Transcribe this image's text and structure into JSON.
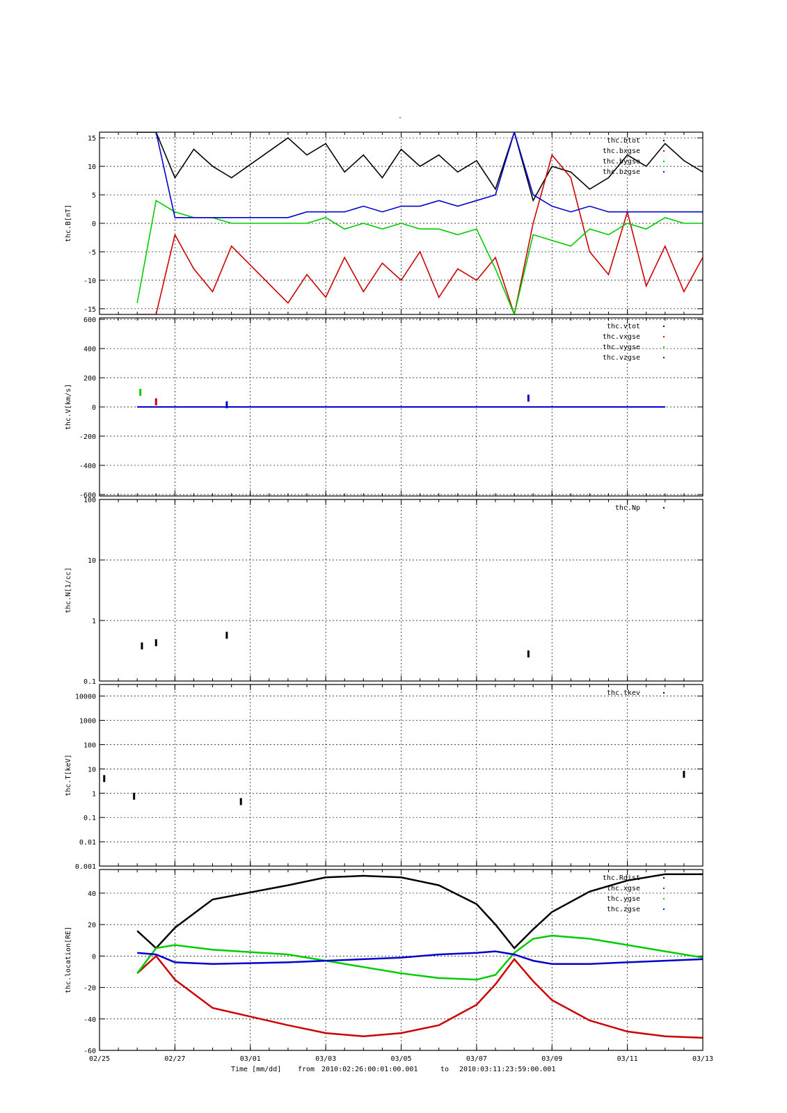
{
  "title": "-",
  "xlabel": {
    "prefix": "Time [mm/dd]",
    "from_label": "from",
    "from": "2010:02:26:00:01:00.001",
    "to_label": "to",
    "to": "2010:03:11:23:59:00.001"
  },
  "x_ticks": [
    "02/25",
    "02/27",
    "03/01",
    "03/03",
    "03/05",
    "03/07",
    "03/09",
    "03/11",
    "03/13"
  ],
  "colors": {
    "black": "#000000",
    "red": "#cc0000",
    "green": "#00cc00",
    "blue": "#0000cc"
  },
  "chart_data": [
    {
      "type": "scatter",
      "ylabel": "thc.B[nT]",
      "ylim": [
        -16,
        16
      ],
      "yscale": "linear",
      "yticks": [
        15,
        10,
        5,
        0,
        -5,
        -10,
        -15
      ],
      "xlim_days": [
        "02/25",
        "03/13"
      ],
      "legend_position": "top-right",
      "grid": true,
      "series": [
        {
          "name": "thc.btot",
          "color": "black",
          "x": [
            "02/26 00:00",
            "02/26 12:00",
            "02/27 00:00",
            "02/27 12:00",
            "02/28 00:00",
            "02/28 12:00",
            "03/01 00:00",
            "03/01 12:00",
            "03/02 00:00",
            "03/02 12:00",
            "03/03 00:00",
            "03/03 12:00",
            "03/04 00:00",
            "03/04 12:00",
            "03/05 00:00",
            "03/05 12:00",
            "03/06 00:00",
            "03/06 12:00",
            "03/07 00:00",
            "03/07 12:00",
            "03/08 00:00",
            "03/08 12:00",
            "03/09 00:00",
            "03/09 12:00",
            "03/10 00:00",
            "03/10 12:00",
            "03/11 00:00",
            "03/11 12:00",
            "03/12 00:00"
          ],
          "y": [
            16,
            16,
            8,
            13,
            10,
            8,
            15,
            12,
            14,
            9,
            12,
            8,
            13,
            10,
            12,
            9,
            11,
            6,
            16,
            4,
            10,
            9,
            6,
            8,
            12,
            10,
            14,
            11,
            9
          ]
        },
        {
          "name": "thc.bxgse",
          "color": "red",
          "x": [
            "02/26 00:00",
            "02/26 12:00",
            "02/27 00:00",
            "02/27 12:00",
            "02/28 00:00",
            "02/28 12:00",
            "03/01 00:00",
            "03/01 12:00",
            "03/02 00:00",
            "03/02 12:00",
            "03/03 00:00",
            "03/03 12:00",
            "03/04 00:00",
            "03/04 12:00",
            "03/05 00:00",
            "03/05 12:00",
            "03/06 00:00",
            "03/06 12:00",
            "03/07 00:00",
            "03/07 12:00",
            "03/08 00:00",
            "03/08 12:00",
            "03/09 00:00",
            "03/09 12:00",
            "03/10 00:00",
            "03/10 12:00",
            "03/11 00:00",
            "03/11 12:00",
            "03/12 00:00"
          ],
          "y": [
            -16,
            -16,
            -2,
            -8,
            -12,
            -4,
            -14,
            -9,
            -13,
            -6,
            -12,
            -7,
            -10,
            -5,
            -13,
            -8,
            -10,
            -6,
            -16,
            0,
            12,
            8,
            -5,
            -9,
            2,
            -11,
            -4,
            -12,
            -6
          ]
        },
        {
          "name": "thc.bygse",
          "color": "green",
          "x": [
            "02/26 00:00",
            "02/26 12:00",
            "02/27 00:00",
            "02/27 12:00",
            "02/28 00:00",
            "02/28 12:00",
            "03/01 00:00",
            "03/01 12:00",
            "03/02 00:00",
            "03/02 12:00",
            "03/03 00:00",
            "03/03 12:00",
            "03/04 00:00",
            "03/04 12:00",
            "03/05 00:00",
            "03/05 12:00",
            "03/06 00:00",
            "03/06 12:00",
            "03/07 00:00",
            "03/07 12:00",
            "03/08 00:00",
            "03/08 12:00",
            "03/09 00:00",
            "03/09 12:00",
            "03/10 00:00",
            "03/10 12:00",
            "03/11 00:00",
            "03/11 12:00",
            "03/12 00:00"
          ],
          "y": [
            -14,
            4,
            2,
            1,
            1,
            0,
            0,
            0,
            1,
            -1,
            0,
            -1,
            0,
            -1,
            -1,
            -2,
            -1,
            -8,
            -16,
            -2,
            -3,
            -4,
            -1,
            -2,
            0,
            -1,
            1,
            0,
            0
          ]
        },
        {
          "name": "thc.bzgse",
          "color": "blue",
          "x": [
            "02/26 00:00",
            "02/26 12:00",
            "02/27 00:00",
            "02/27 12:00",
            "02/28 00:00",
            "02/28 12:00",
            "03/01 00:00",
            "03/01 12:00",
            "03/02 00:00",
            "03/02 12:00",
            "03/03 00:00",
            "03/03 12:00",
            "03/04 00:00",
            "03/04 12:00",
            "03/05 00:00",
            "03/05 12:00",
            "03/06 00:00",
            "03/06 12:00",
            "03/07 00:00",
            "03/07 12:00",
            "03/08 00:00",
            "03/08 12:00",
            "03/09 00:00",
            "03/09 12:00",
            "03/10 00:00",
            "03/10 12:00",
            "03/11 00:00",
            "03/11 12:00",
            "03/12 00:00"
          ],
          "y": [
            16,
            16,
            1,
            1,
            1,
            1,
            1,
            2,
            2,
            2,
            3,
            2,
            3,
            3,
            4,
            3,
            4,
            5,
            16,
            5,
            3,
            2,
            3,
            2,
            2,
            2,
            2,
            2,
            2
          ]
        }
      ]
    },
    {
      "type": "scatter",
      "ylabel": "thc.V[km/s]",
      "ylim": [
        -610,
        610
      ],
      "yscale": "linear",
      "yticks": [
        600,
        400,
        200,
        0,
        -200,
        -400,
        -600
      ],
      "legend_position": "top-right",
      "grid": true,
      "series": [
        {
          "name": "thc.vtot",
          "color": "black",
          "x": [
            "02/26 00:00",
            "03/12 00:00"
          ],
          "y": [
            0,
            0
          ]
        },
        {
          "name": "thc.vxgse",
          "color": "red",
          "x": [
            "02/26 00:00",
            "02/26 12:00",
            "03/12 00:00"
          ],
          "y": [
            0,
            35,
            0
          ]
        },
        {
          "name": "thc.vygse",
          "color": "green",
          "x": [
            "02/26 00:00",
            "02/26 02:00",
            "03/12 00:00"
          ],
          "y": [
            0,
            100,
            0
          ]
        },
        {
          "name": "thc.vzgse",
          "color": "blue",
          "x": [
            "02/26 00:00",
            "02/28 09:00",
            "03/07 09:00",
            "03/12 00:00"
          ],
          "y": [
            0,
            15,
            60,
            0
          ]
        }
      ]
    },
    {
      "type": "scatter",
      "ylabel": "thc.N[1/cc]",
      "ylim": [
        0.1,
        100
      ],
      "yscale": "log",
      "yticks": [
        "100",
        "10",
        "1",
        "0.1"
      ],
      "legend_position": "top-right",
      "grid": true,
      "series": [
        {
          "name": "thc.Np",
          "color": "black",
          "x": [
            "02/26 03:00",
            "02/26 12:00",
            "02/28 09:00",
            "03/07 09:00"
          ],
          "y": [
            0.38,
            0.43,
            0.57,
            0.28
          ]
        }
      ]
    },
    {
      "type": "scatter",
      "ylabel": "thc.T[keV]",
      "ylim": [
        0.001,
        30000
      ],
      "yscale": "log",
      "yticks": [
        "10000",
        "1000",
        "100",
        "10",
        "1",
        "0.1",
        "0.01",
        "0.001"
      ],
      "legend_position": "top-right",
      "grid": true,
      "series": [
        {
          "name": "thc.tkev",
          "color": "black",
          "x": [
            "02/25 03:00",
            "02/25 22:00",
            "02/28 18:00",
            "03/11 12:00"
          ],
          "y": [
            4,
            0.75,
            0.45,
            6
          ]
        }
      ]
    },
    {
      "type": "line",
      "ylabel": "thc.location[RE]",
      "ylim": [
        -60,
        55
      ],
      "yscale": "linear",
      "yticks": [
        40,
        20,
        0,
        -20,
        -40,
        -60
      ],
      "legend_position": "top-right",
      "grid": true,
      "series": [
        {
          "name": "thc.Rdist",
          "color": "black",
          "x": [
            "02/26 00:00",
            "02/26 12:00",
            "02/27 00:00",
            "02/28 00:00",
            "03/01 00:00",
            "03/02 00:00",
            "03/03 00:00",
            "03/04 00:00",
            "03/05 00:00",
            "03/06 00:00",
            "03/06 12:00",
            "03/07 00:00",
            "03/07 12:00",
            "03/08 00:00",
            "03/09 00:00",
            "03/10 00:00",
            "03/11 00:00",
            "03/12 00:00"
          ],
          "y": [
            16,
            5,
            18,
            36,
            45,
            50,
            51,
            50,
            45,
            33,
            20,
            5,
            17,
            28,
            41,
            48,
            52,
            52
          ]
        },
        {
          "name": "thc.xgse",
          "color": "red",
          "x": [
            "02/26 00:00",
            "02/26 12:00",
            "02/27 00:00",
            "02/28 00:00",
            "03/01 00:00",
            "03/02 00:00",
            "03/03 00:00",
            "03/04 00:00",
            "03/05 00:00",
            "03/06 00:00",
            "03/06 12:00",
            "03/07 00:00",
            "03/07 12:00",
            "03/08 00:00",
            "03/09 00:00",
            "03/10 00:00",
            "03/11 00:00",
            "03/12 00:00"
          ],
          "y": [
            -11,
            0,
            -15,
            -33,
            -44,
            -49,
            -51,
            -49,
            -44,
            -31,
            -18,
            -2,
            -16,
            -28,
            -41,
            -48,
            -51,
            -52
          ]
        },
        {
          "name": "thc.ygse",
          "color": "green",
          "x": [
            "02/26 00:00",
            "02/26 12:00",
            "02/27 00:00",
            "02/28 00:00",
            "03/01 00:00",
            "03/02 00:00",
            "03/03 00:00",
            "03/04 00:00",
            "03/05 00:00",
            "03/06 00:00",
            "03/06 12:00",
            "03/07 00:00",
            "03/07 12:00",
            "03/08 00:00",
            "03/09 00:00",
            "03/10 00:00",
            "03/11 00:00",
            "03/12 00:00"
          ],
          "y": [
            -11,
            5,
            7,
            4,
            1,
            -3,
            -7,
            -11,
            -14,
            -15,
            -12,
            2,
            11,
            13,
            11,
            7,
            3,
            -1
          ]
        },
        {
          "name": "thc.zgse",
          "color": "blue",
          "x": [
            "02/26 00:00",
            "02/26 12:00",
            "02/27 00:00",
            "02/28 00:00",
            "03/01 00:00",
            "03/02 00:00",
            "03/03 00:00",
            "03/04 00:00",
            "03/05 00:00",
            "03/06 00:00",
            "03/06 12:00",
            "03/07 00:00",
            "03/07 12:00",
            "03/08 00:00",
            "03/09 00:00",
            "03/10 00:00",
            "03/11 00:00",
            "03/12 00:00"
          ],
          "y": [
            2,
            1,
            -4,
            -5,
            -4,
            -3,
            -2,
            -1,
            1,
            2,
            3,
            1,
            -3,
            -5,
            -5,
            -4,
            -3,
            -2
          ]
        }
      ]
    }
  ]
}
